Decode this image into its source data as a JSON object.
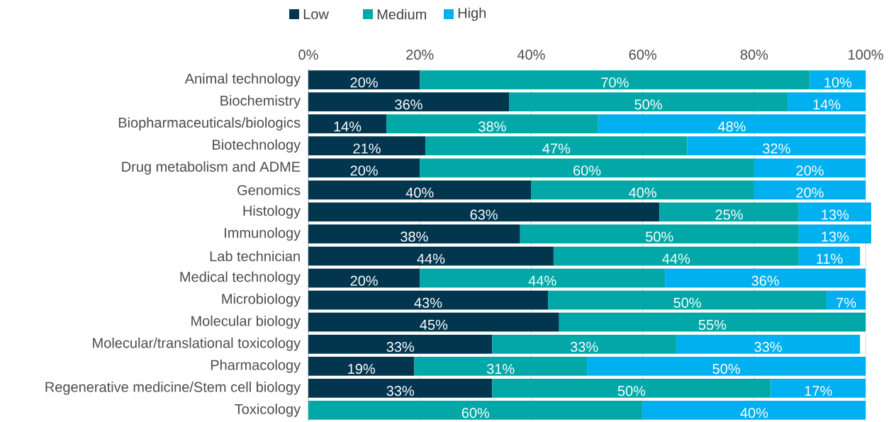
{
  "chart_data": {
    "type": "bar",
    "orientation": "horizontal",
    "stacked": true,
    "legend": "top",
    "grid": "x",
    "categories": [
      "Animal technology",
      "Biochemistry",
      "Biopharmaceuticals/biologics",
      "Biotechnology",
      "Drug metabolism and ADME",
      "Genomics",
      "Histology",
      "Immunology",
      "Lab technician",
      "Medical technology",
      "Microbiology",
      "Molecular biology",
      "Molecular/translational toxicology",
      "Pharmacology",
      "Regenerative medicine/Stem cell biology",
      "Toxicology"
    ],
    "xlim": [
      0,
      101
    ],
    "xticks": [
      {
        "value": 0,
        "label": "0%"
      },
      {
        "value": 20,
        "label": "20%"
      },
      {
        "value": 40,
        "label": "40%"
      },
      {
        "value": 60,
        "label": "60%"
      },
      {
        "value": 80,
        "label": "80%"
      },
      {
        "value": 100,
        "label": "100%"
      }
    ],
    "series": [
      {
        "name": "Low",
        "color": "#02364f",
        "values": [
          20,
          36,
          14,
          21,
          20,
          40,
          63,
          38,
          44,
          20,
          43,
          45,
          33,
          19,
          33,
          null
        ],
        "value_labels": [
          "20%",
          "36%",
          "14%",
          "21%",
          "20%",
          "40%",
          "63%",
          "38%",
          "44%",
          "20%",
          "43%",
          "45%",
          "33%",
          "19%",
          "33%",
          null
        ]
      },
      {
        "name": "Medium",
        "color": "#02a8a8",
        "values": [
          70,
          50,
          38,
          47,
          60,
          40,
          25,
          50,
          44,
          44,
          50,
          55,
          33,
          31,
          50,
          60
        ],
        "value_labels": [
          "70%",
          "50%",
          "38%",
          "47%",
          "60%",
          "40%",
          "25%",
          "50%",
          "44%",
          "44%",
          "50%",
          "55%",
          "33%",
          "31%",
          "50%",
          "60%"
        ]
      },
      {
        "name": "High",
        "color": "#00b0f0",
        "values": [
          10,
          14,
          48,
          32,
          20,
          20,
          13,
          13,
          11,
          36,
          7,
          null,
          33,
          50,
          17,
          40
        ],
        "value_labels": [
          "10%",
          "14%",
          "48%",
          "32%",
          "20%",
          "20%",
          "13%",
          "13%",
          "11%",
          "36%",
          "7%",
          null,
          "33%",
          "50%",
          "17%",
          "40%"
        ]
      }
    ]
  }
}
